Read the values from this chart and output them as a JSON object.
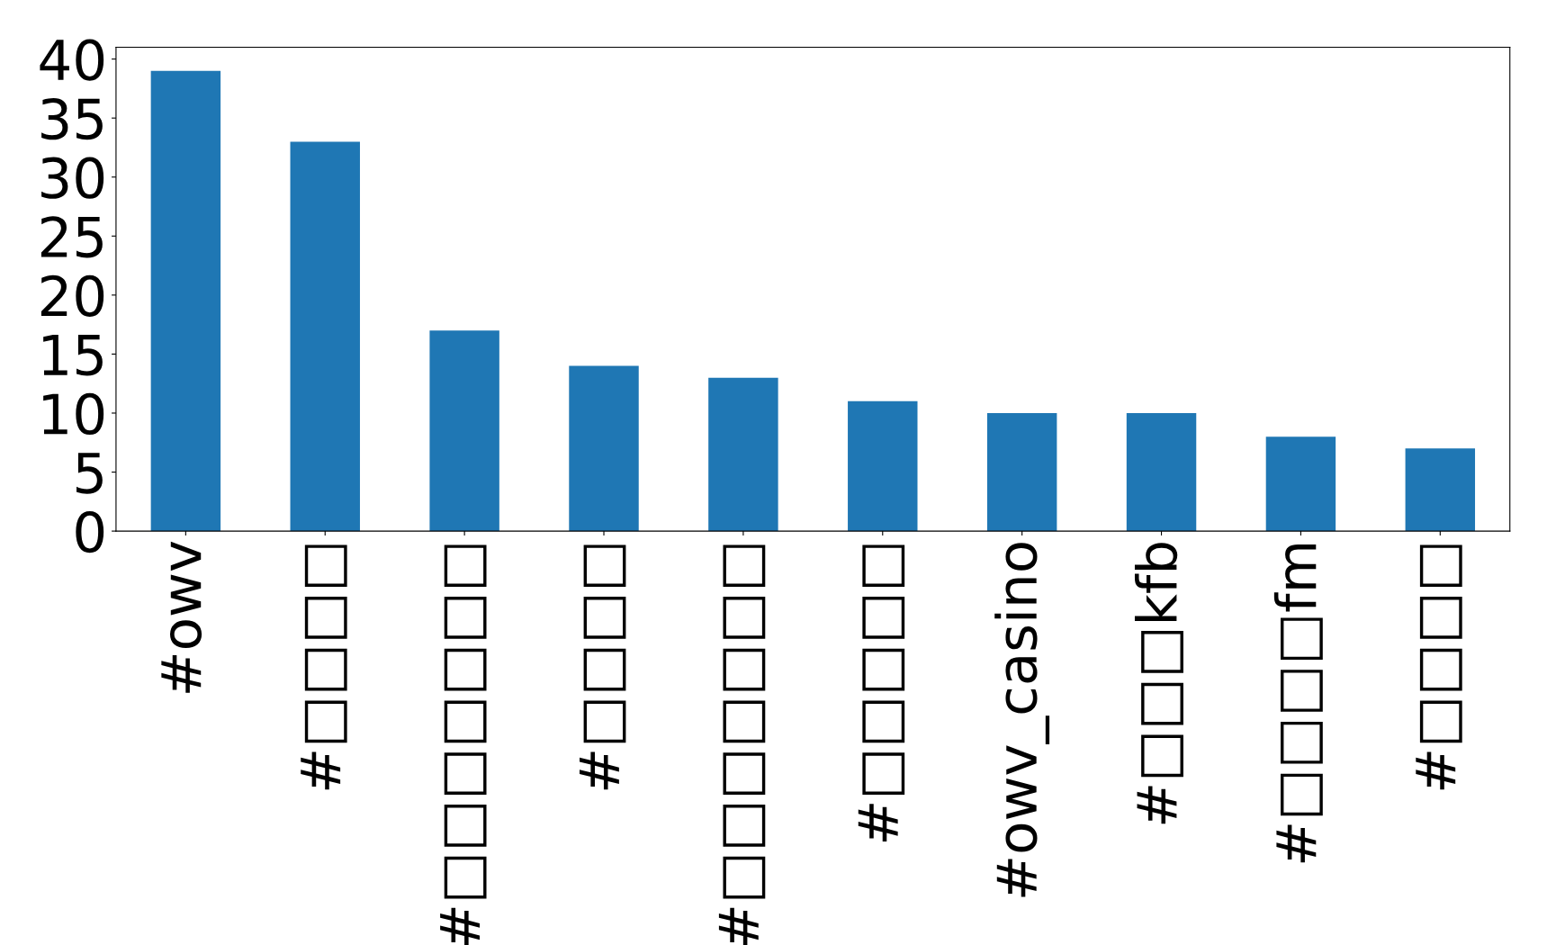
{
  "chart_data": {
    "type": "bar",
    "categories": [
      "#owv",
      "#□□□□",
      "#□□□□□□□",
      "#□□□□",
      "#□□□□□□□",
      "#□□□□□",
      "#owv_casino",
      "#□□□kfb",
      "#□□□□fm",
      "#□□□□"
    ],
    "values": [
      39,
      33,
      17,
      14,
      13,
      11,
      10,
      10,
      8,
      7
    ],
    "color": "#1f77b4",
    "ylim": [
      0,
      41
    ],
    "yticks": [
      0,
      5,
      10,
      15,
      20,
      25,
      30,
      35,
      40
    ],
    "grid": false
  }
}
